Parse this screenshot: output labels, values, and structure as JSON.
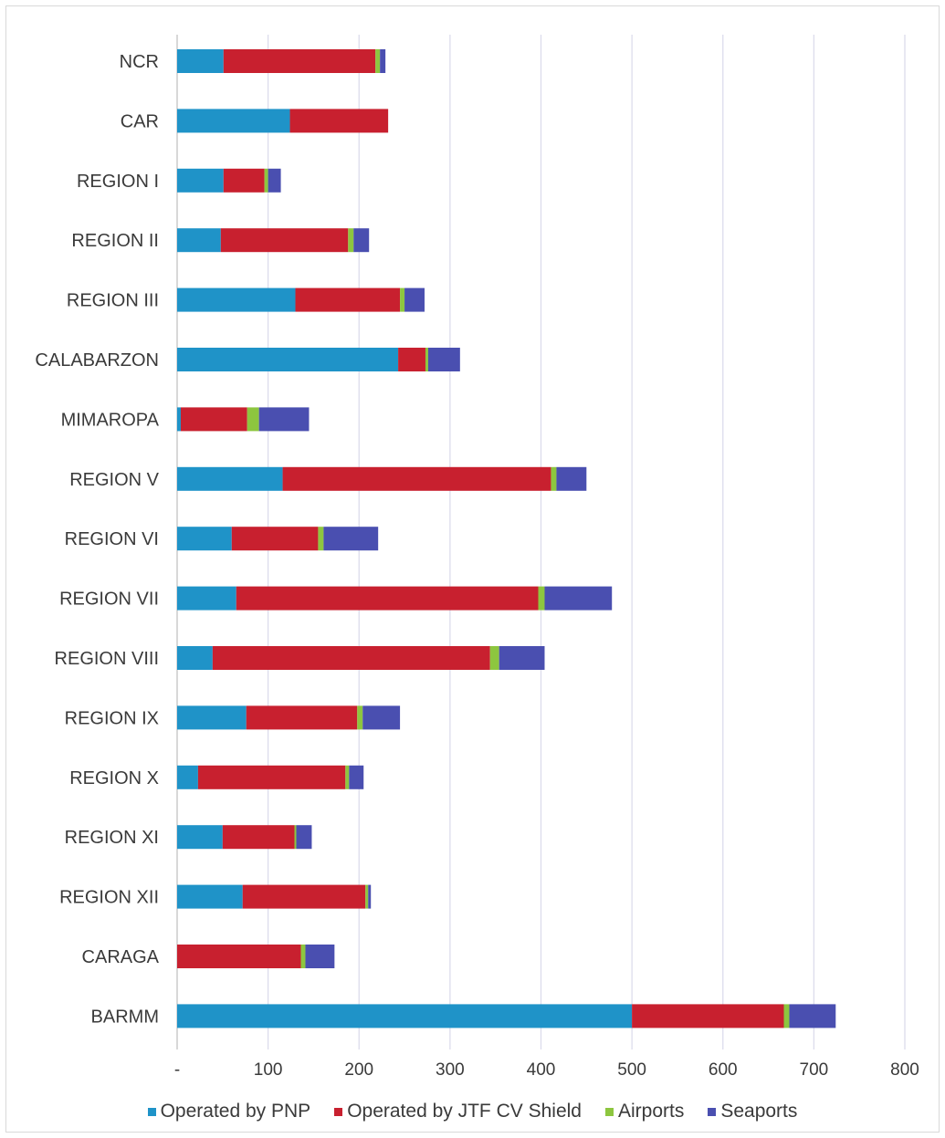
{
  "chart_data": {
    "type": "bar",
    "orientation": "horizontal",
    "stacked": true,
    "categories": [
      "NCR",
      "CAR",
      "REGION I",
      "REGION II",
      "REGION III",
      "CALABARZON",
      "MIMAROPA",
      "REGION V",
      "REGION VI",
      "REGION VII",
      "REGION VIII",
      "REGION IX",
      "REGION X",
      "REGION XI",
      "REGION XII",
      "CARAGA",
      "BARMM"
    ],
    "series": [
      {
        "name": "Operated by PNP",
        "color": "#1f93c8",
        "values": [
          51,
          124,
          51,
          48,
          130,
          243,
          4,
          116,
          60,
          65,
          39,
          76,
          23,
          50,
          72,
          0,
          500
        ]
      },
      {
        "name": "Operated by JTF CV Shield",
        "color": "#c8202f",
        "values": [
          167,
          108,
          45,
          140,
          115,
          30,
          73,
          295,
          95,
          332,
          305,
          122,
          162,
          79,
          135,
          136,
          167
        ]
      },
      {
        "name": "Airports",
        "color": "#8dc63f",
        "values": [
          5,
          0,
          4,
          6,
          5,
          3,
          13,
          6,
          6,
          7,
          10,
          6,
          4,
          2,
          3,
          5,
          6
        ]
      },
      {
        "name": "Seaports",
        "color": "#4a4fb0",
        "values": [
          6,
          0,
          14,
          17,
          22,
          35,
          55,
          33,
          60,
          74,
          50,
          41,
          16,
          17,
          3,
          32,
          51
        ]
      }
    ],
    "xlim": [
      0,
      800
    ],
    "xticks": [
      0,
      100,
      200,
      300,
      400,
      500,
      600,
      700,
      800
    ],
    "xtick_labels": [
      "-",
      "100",
      "200",
      "300",
      "400",
      "500",
      "600",
      "700",
      "800"
    ],
    "grid": "vertical",
    "legend_position": "bottom",
    "title": "",
    "xlabel": "",
    "ylabel": ""
  }
}
